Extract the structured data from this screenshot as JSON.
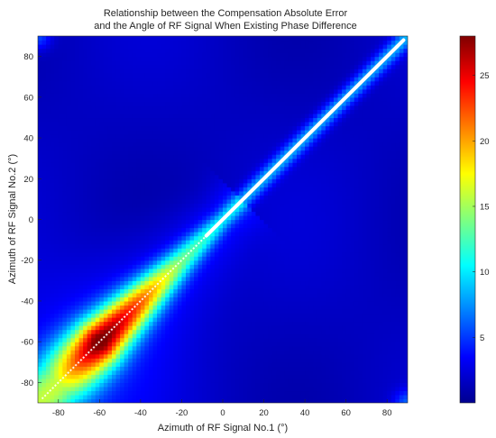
{
  "chart_data": {
    "type": "heatmap",
    "title_lines": [
      "Relationship between the Compensation Absolute Error",
      "and the Angle of RF Signal When Existing Phase Difference"
    ],
    "xlabel": "Azimuth  of RF Signal No.1 (°)",
    "ylabel": "Azimuth  of RF Signal No.2 (°)",
    "xlim": [
      -90,
      90
    ],
    "ylim": [
      -90,
      90
    ],
    "xticks": [
      -80,
      -60,
      -40,
      -20,
      0,
      20,
      40,
      60,
      80
    ],
    "yticks": [
      -80,
      -60,
      -40,
      -20,
      0,
      20,
      40,
      60,
      80
    ],
    "colorbar": {
      "colormap": "jet",
      "clim": [
        0,
        28
      ],
      "ticks": [
        5,
        10,
        15,
        20,
        25
      ]
    },
    "grid": false,
    "diagonal": {
      "description_values": [
        {
          "x": -80,
          "peak_error": 14
        },
        {
          "x": -60,
          "peak_error": 27
        },
        {
          "x": -40,
          "peak_error": 20
        },
        {
          "x": -20,
          "peak_error": 12
        },
        {
          "x": 0,
          "peak_error": 8
        },
        {
          "x": 40,
          "peak_error": 8
        },
        {
          "x": 88,
          "peak_error": 8
        }
      ]
    }
  }
}
